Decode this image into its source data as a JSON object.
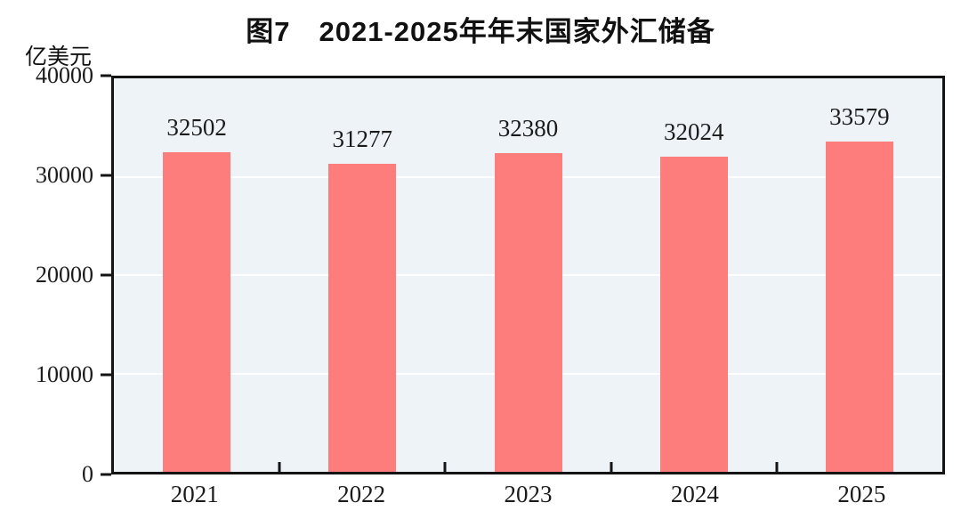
{
  "chart_data": {
    "type": "bar",
    "title": "图7　2021-2025年年末国家外汇储备",
    "unit_label": "亿美元",
    "categories": [
      "2021",
      "2022",
      "2023",
      "2024",
      "2025"
    ],
    "values": [
      32502,
      31277,
      32380,
      32024,
      33579
    ],
    "xlabel": "",
    "ylabel": "亿美元",
    "ylim": [
      0,
      40000
    ],
    "yticks": [
      0,
      10000,
      20000,
      30000,
      40000
    ],
    "grid": "horizontal white gridlines at 10000 intervals, behind bars",
    "legend": "none",
    "bar_color": "#fd7d7d",
    "plot_bg": "#edf3f7",
    "axis_color": "#141414",
    "text_color": "#1b1b1b"
  }
}
